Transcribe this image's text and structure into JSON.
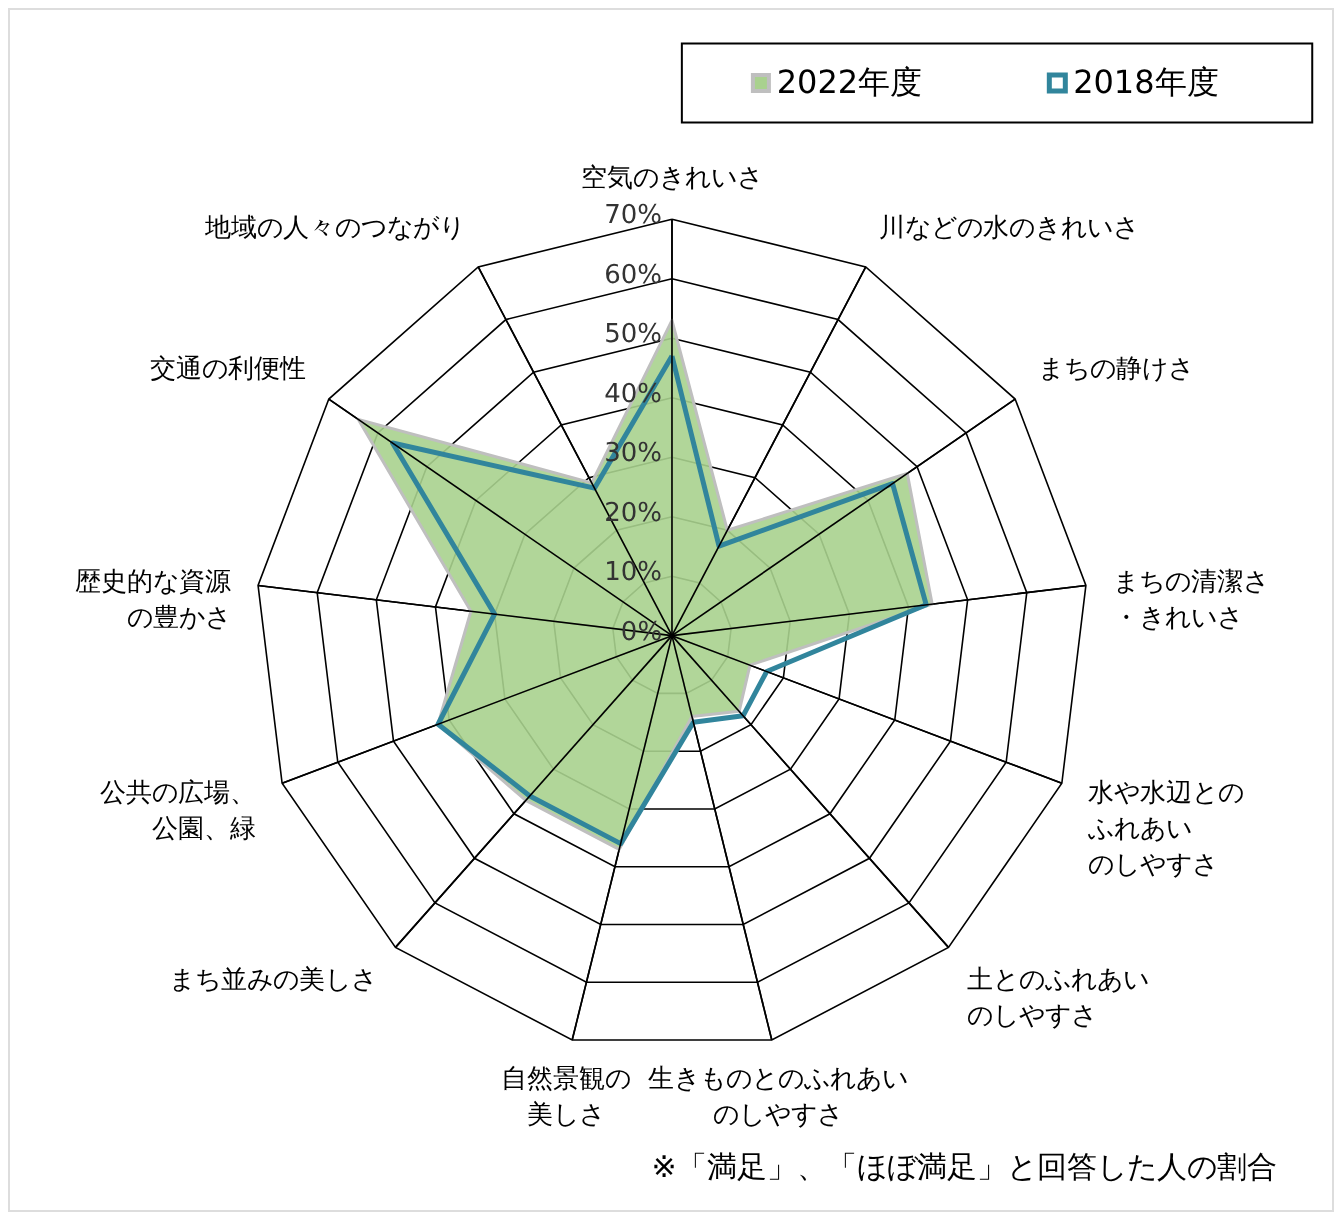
{
  "chart_data": {
    "type": "radar",
    "categories": [
      "空気のきれいさ",
      "川などの水のきれいさ",
      "まちの静けさ",
      "まちの清潔さ・きれいさ",
      "水や水辺とのふれあいのしやすさ",
      "土とのふれあいのしやすさ",
      "生きものとのふれあいのしやすさ",
      "自然景観の美しさ",
      "まち並みの美しさ",
      "公共の広場、公園、緑",
      "歴史的な資源の豊かさ",
      "交通の利便性",
      "地域の人々のつながり"
    ],
    "series": [
      {
        "name": "2022年度",
        "color": "#a9d18e",
        "values": [
          53,
          20,
          48,
          44,
          14,
          17,
          14,
          37,
          37,
          42,
          34,
          64,
          29
        ]
      },
      {
        "name": "2018年度",
        "color": "#31859c",
        "values": [
          47,
          17,
          45,
          43,
          17,
          18,
          15,
          36,
          36,
          42,
          30,
          57,
          28
        ]
      }
    ],
    "ylim": [
      0,
      70
    ],
    "yticks": [
      {
        "value": 0,
        "label": "0%"
      },
      {
        "value": 10,
        "label": "10%"
      },
      {
        "value": 20,
        "label": "20%"
      },
      {
        "value": 30,
        "label": "30%"
      },
      {
        "value": 40,
        "label": "40%"
      },
      {
        "value": 50,
        "label": "50%"
      },
      {
        "value": 60,
        "label": "60%"
      },
      {
        "value": 70,
        "label": "70%"
      }
    ],
    "grid": true,
    "legend": "top right",
    "annotations": [
      "※「満足」、「ほぼ満足」と回答した人の割合"
    ]
  }
}
